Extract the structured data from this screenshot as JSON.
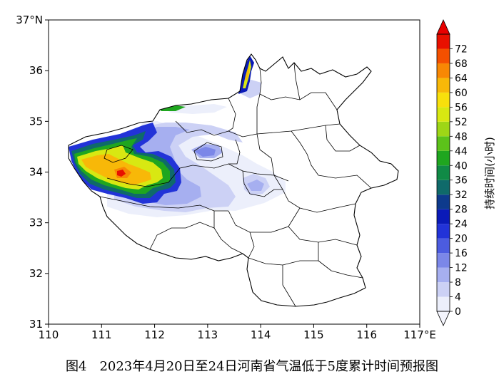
{
  "map": {
    "lon_labels": [
      "110",
      "111",
      "112",
      "113",
      "114",
      "115",
      "116",
      "117°E"
    ],
    "lat_labels": [
      "31",
      "32",
      "33",
      "34",
      "35",
      "36",
      "37°N"
    ],
    "lon_values": [
      110,
      111,
      112,
      113,
      114,
      115,
      116,
      117
    ],
    "lat_values": [
      31,
      32,
      33,
      34,
      35,
      36,
      37
    ],
    "lon_range": [
      110,
      117
    ],
    "lat_range": [
      31,
      37
    ]
  },
  "legend": {
    "title": "持续时间(小时)",
    "levels": [
      0,
      4,
      8,
      12,
      16,
      20,
      24,
      28,
      32,
      36,
      40,
      44,
      48,
      52,
      56,
      60,
      64,
      68,
      72
    ],
    "labels": [
      "0",
      "4",
      "8",
      "12",
      "16",
      "20",
      "24",
      "28",
      "32",
      "36",
      "40",
      "44",
      "48",
      "52",
      "56",
      "60",
      "64",
      "68",
      "72"
    ],
    "colors": [
      "#eceffb",
      "#ccd1f5",
      "#a6aff0",
      "#7b87e8",
      "#4c5ce0",
      "#2233d8",
      "#0a1ab8",
      "#0d3a8c",
      "#0f6a6a",
      "#108a46",
      "#1fa61f",
      "#5cc21a",
      "#9ed616",
      "#d8e812",
      "#f8e00c",
      "#f8b808",
      "#f88804",
      "#f45000",
      "#e81000"
    ],
    "under_color": "#f4f5fd",
    "over_color": "#e80000"
  },
  "caption": "图4　2023年4月20日至24日河南省气温低于5度累计时间预报图"
}
